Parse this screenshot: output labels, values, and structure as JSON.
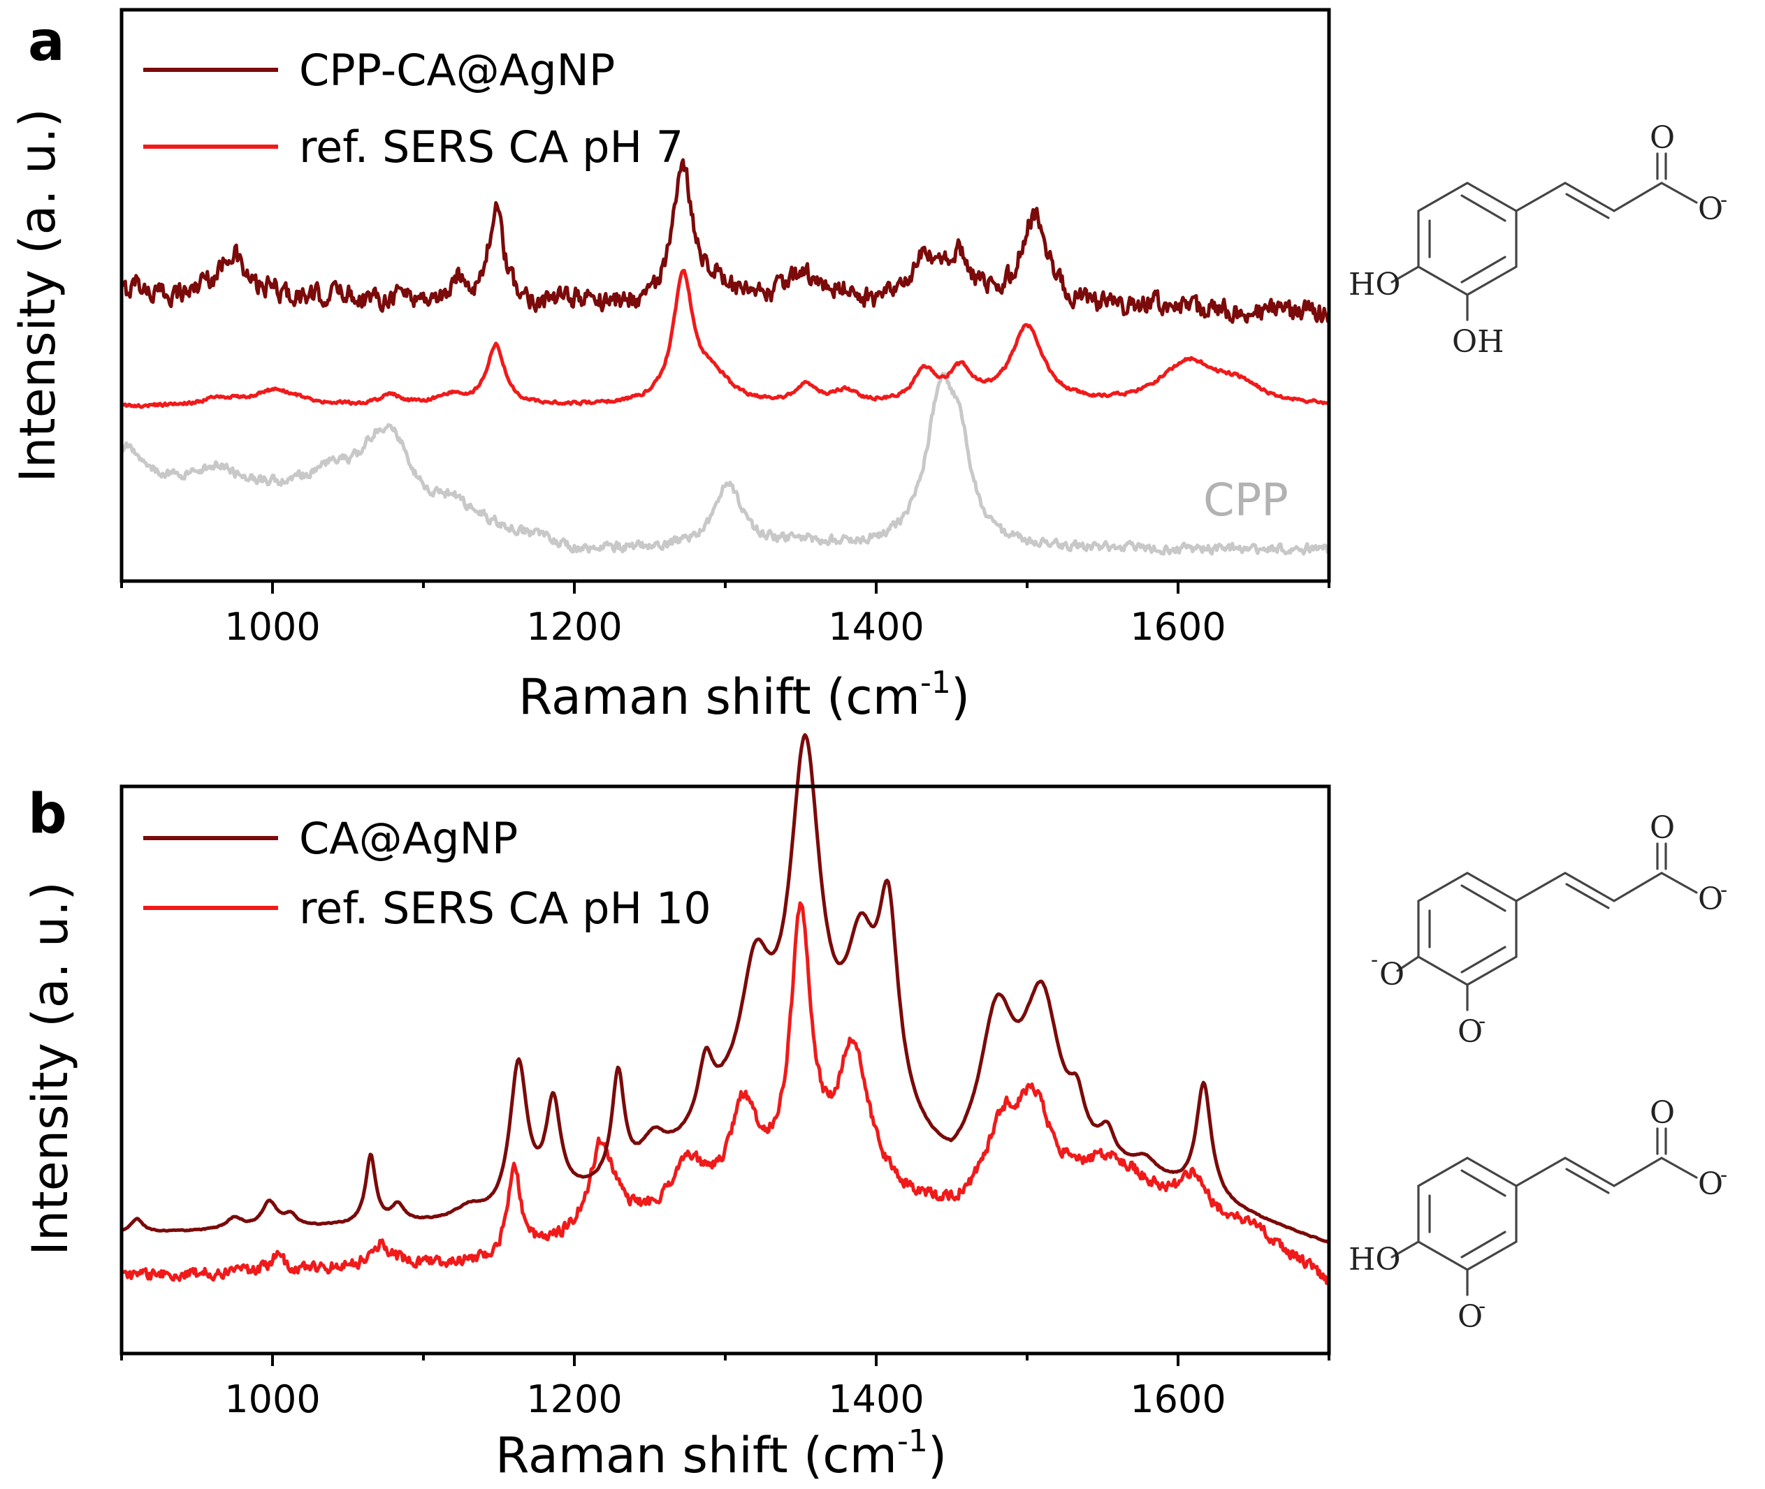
{
  "chart_data": [
    {
      "type": "line",
      "panel_label": "a",
      "xlabel": "Raman shift (cm",
      "xlabel_sup": "-1",
      "xlabel_close": ")",
      "ylabel": "Intensity (a. u.)",
      "xlim": [
        900,
        1700
      ],
      "ylim": [
        0,
        10
      ],
      "x_ticks": [
        1000,
        1200,
        1400,
        1600
      ],
      "legend_position": "top-left",
      "series": [
        {
          "name": "CPP-CA@AgNP",
          "color": "#7b0a0a",
          "noise": 0.28,
          "baseline": [
            [
              900,
              5.0
            ],
            [
              1200,
              4.8
            ],
            [
              1700,
              4.7
            ]
          ],
          "peaks": [
            [
              910,
              0.25,
              4
            ],
            [
              955,
              0.18,
              5
            ],
            [
              973,
              0.8,
              9
            ],
            [
              1000,
              0.12,
              6
            ],
            [
              1045,
              0.15,
              8
            ],
            [
              1085,
              0.15,
              7
            ],
            [
              1124,
              0.4,
              5
            ],
            [
              1148,
              1.65,
              6
            ],
            [
              1202,
              0.12,
              10
            ],
            [
              1272,
              2.3,
              8
            ],
            [
              1292,
              0.35,
              12
            ],
            [
              1350,
              0.55,
              14
            ],
            [
              1378,
              0.22,
              6
            ],
            [
              1432,
              0.75,
              12
            ],
            [
              1455,
              0.8,
              10
            ],
            [
              1505,
              1.6,
              11
            ],
            [
              1585,
              0.12,
              10
            ]
          ]
        },
        {
          "name": "ref. SERS CA pH 7",
          "color": "#f01a1a",
          "noise": 0.045,
          "baseline": [
            [
              900,
              3.05
            ],
            [
              1200,
              3.05
            ],
            [
              1700,
              3.05
            ]
          ],
          "peaks": [
            [
              965,
              0.12,
              14
            ],
            [
              1003,
              0.28,
              18
            ],
            [
              1078,
              0.18,
              8
            ],
            [
              1118,
              0.18,
              12
            ],
            [
              1148,
              1.05,
              7
            ],
            [
              1272,
              2.2,
              8
            ],
            [
              1292,
              0.45,
              14
            ],
            [
              1354,
              0.32,
              9
            ],
            [
              1380,
              0.22,
              9
            ],
            [
              1432,
              0.55,
              9
            ],
            [
              1456,
              0.55,
              10
            ],
            [
              1500,
              1.35,
              13
            ],
            [
              1607,
              0.75,
              22
            ],
            [
              1640,
              0.3,
              18
            ]
          ]
        },
        {
          "name": "CPP",
          "color": "#c8c8c8",
          "noise": 0.13,
          "baseline": [
            [
              900,
              1.85
            ],
            [
              1100,
              1.35
            ],
            [
              1200,
              0.55
            ],
            [
              1700,
              0.55
            ]
          ],
          "peaks": [
            [
              905,
              0.45,
              10
            ],
            [
              965,
              0.3,
              12
            ],
            [
              1040,
              0.4,
              20
            ],
            [
              1070,
              0.9,
              14
            ],
            [
              1083,
              0.6,
              9
            ],
            [
              1120,
              0.2,
              9
            ],
            [
              1302,
              1.1,
              11
            ],
            [
              1350,
              0.12,
              20
            ],
            [
              1443,
              2.6,
              12
            ],
            [
              1456,
              1.2,
              9
            ]
          ]
        }
      ],
      "annotations": [
        {
          "text": "CPP",
          "x": 1655,
          "y": 1.2,
          "color": "#b2b2b2"
        }
      ],
      "chemical_structure": {
        "labels": [
          "O",
          "O",
          "HO",
          "OH"
        ],
        "sup": [
          "-"
        ]
      }
    },
    {
      "type": "line",
      "panel_label": "b",
      "xlabel": "Raman shift (cm",
      "xlabel_sup": "-1",
      "xlabel_close": ")",
      "ylabel": "Intensity (a. u.)",
      "xlim": [
        900,
        1700
      ],
      "ylim": [
        0,
        10
      ],
      "x_ticks": [
        1000,
        1200,
        1400,
        1600
      ],
      "legend_position": "top-left",
      "series": [
        {
          "name": "CA@AgNP",
          "color": "#7b0a0a",
          "noise": 0.015,
          "baseline": [
            [
              900,
              2.1
            ],
            [
              1150,
              2.3
            ],
            [
              1250,
              3.0
            ],
            [
              1300,
              4.0
            ],
            [
              1350,
              4.5
            ],
            [
              1400,
              4.0
            ],
            [
              1450,
              2.85
            ],
            [
              1500,
              3.4
            ],
            [
              1600,
              2.8
            ],
            [
              1700,
              1.9
            ]
          ],
          "peaks": [
            [
              910,
              0.25,
              5
            ],
            [
              975,
              0.2,
              6
            ],
            [
              998,
              0.45,
              6
            ],
            [
              1012,
              0.2,
              5
            ],
            [
              1065,
              1.2,
              4
            ],
            [
              1083,
              0.3,
              5
            ],
            [
              1130,
              0.2,
              10
            ],
            [
              1163,
              2.6,
              7
            ],
            [
              1186,
              1.7,
              6
            ],
            [
              1229,
              1.9,
              5
            ],
            [
              1252,
              0.6,
              10
            ],
            [
              1287,
              1.05,
              6
            ],
            [
              1320,
              2.2,
              12
            ],
            [
              1353,
              5.8,
              12
            ],
            [
              1390,
              2.4,
              12
            ],
            [
              1408,
              3.3,
              8
            ],
            [
              1480,
              2.5,
              14
            ],
            [
              1510,
              2.6,
              14
            ],
            [
              1533,
              0.7,
              6
            ],
            [
              1553,
              0.5,
              6
            ],
            [
              1578,
              0.3,
              10
            ],
            [
              1617,
              2.0,
              6
            ]
          ]
        },
        {
          "name": "ref. SERS CA pH 10",
          "color": "#f01a1a",
          "noise": 0.16,
          "baseline": [
            [
              900,
              1.35
            ],
            [
              1150,
              1.6
            ],
            [
              1250,
              2.3
            ],
            [
              1350,
              3.0
            ],
            [
              1450,
              2.4
            ],
            [
              1550,
              3.1
            ],
            [
              1650,
              2.2
            ],
            [
              1700,
              1.25
            ]
          ],
          "peaks": [
            [
              1003,
              0.25,
              6
            ],
            [
              1072,
              0.4,
              8
            ],
            [
              1160,
              1.6,
              5
            ],
            [
              1218,
              1.6,
              10
            ],
            [
              1275,
              0.8,
              12
            ],
            [
              1312,
              1.5,
              10
            ],
            [
              1350,
              4.5,
              8
            ],
            [
              1385,
              2.5,
              12
            ],
            [
              1485,
              1.3,
              14
            ],
            [
              1505,
              1.4,
              12
            ],
            [
              1560,
              0.3,
              20
            ],
            [
              1610,
              0.6,
              8
            ]
          ]
        }
      ],
      "annotations": [],
      "chemical_structure": {
        "labels": [
          "O",
          "O",
          "O",
          "O",
          "O",
          "O",
          "HO",
          "O"
        ],
        "sup": [
          "-",
          "-",
          "-",
          "-",
          "-"
        ]
      }
    }
  ]
}
